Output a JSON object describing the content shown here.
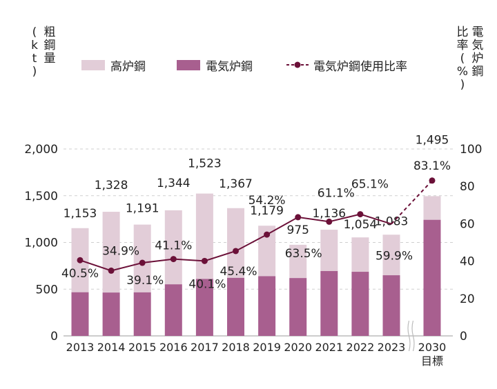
{
  "chart_data": {
    "type": "bar",
    "stacked": true,
    "categories": [
      "2013",
      "2014",
      "2015",
      "2016",
      "2017",
      "2018",
      "2019",
      "2020",
      "2021",
      "2022",
      "2023",
      "2030"
    ],
    "category_sub": [
      "",
      "",
      "",
      "",
      "",
      "",
      "",
      "",
      "",
      "",
      "",
      "目標"
    ],
    "totals": [
      1153,
      1328,
      1191,
      1344,
      1523,
      1367,
      1179,
      975,
      1136,
      1054,
      1083,
      1495
    ],
    "total_labels": [
      "1,153",
      "1,328",
      "1,191",
      "1,344",
      "1,523",
      "1,367",
      "1,179",
      "975",
      "1,136",
      "1,054",
      "1,083",
      "1,495"
    ],
    "series": [
      {
        "name": "高炉鋼",
        "color": "#e2cdd8",
        "values": [
          686,
          864,
          725,
          792,
          913,
          746,
          540,
          356,
          442,
          368,
          434,
          253
        ]
      },
      {
        "name": "電気炉鋼",
        "color": "#a85f8f",
        "values": [
          467,
          464,
          466,
          552,
          610,
          621,
          639,
          619,
          694,
          686,
          649,
          1242
        ]
      }
    ],
    "line": {
      "name": "電気炉鋼使用比率",
      "color": "#6b1038",
      "values": [
        40.5,
        34.9,
        39.1,
        41.1,
        40.1,
        45.4,
        54.2,
        63.5,
        61.1,
        65.1,
        59.9,
        83.1
      ],
      "labels": [
        "40.5%",
        "34.9%",
        "39.1%",
        "41.1%",
        "40.1%",
        "45.4%",
        "54.2%",
        "63.5%",
        "61.1%",
        "65.1%",
        "59.9%",
        "83.1%"
      ],
      "dashed_last_segment": true
    },
    "left_axis": {
      "title": "粗鋼量(kt)",
      "ylim": [
        0,
        2000
      ],
      "ticks": [
        "0",
        "500",
        "1,000",
        "1,500",
        "2,000"
      ],
      "tick_values": [
        0,
        500,
        1000,
        1500,
        2000
      ]
    },
    "right_axis": {
      "title": "電気炉鋼比率(%)",
      "ylim": [
        0,
        100
      ],
      "ticks": [
        "0",
        "20",
        "40",
        "60",
        "80",
        "100"
      ],
      "tick_values": [
        0,
        20,
        40,
        60,
        80,
        100
      ]
    },
    "grid": "dashed horizontal",
    "legend_position": "top"
  },
  "axis_titles": {
    "left_main": [
      "粗",
      "鋼",
      "量"
    ],
    "left_paren": [
      "(",
      "k",
      "t",
      ")"
    ],
    "right_main_col1": [
      "比",
      "率"
    ],
    "right_main_col2": [
      "電",
      "気",
      "炉",
      "鋼"
    ],
    "right_paren": [
      "(",
      "%",
      ")"
    ]
  },
  "legend": {
    "item1": "高炉鋼",
    "item2": "電気炉鋼",
    "item3": "電気炉鋼使用比率"
  }
}
